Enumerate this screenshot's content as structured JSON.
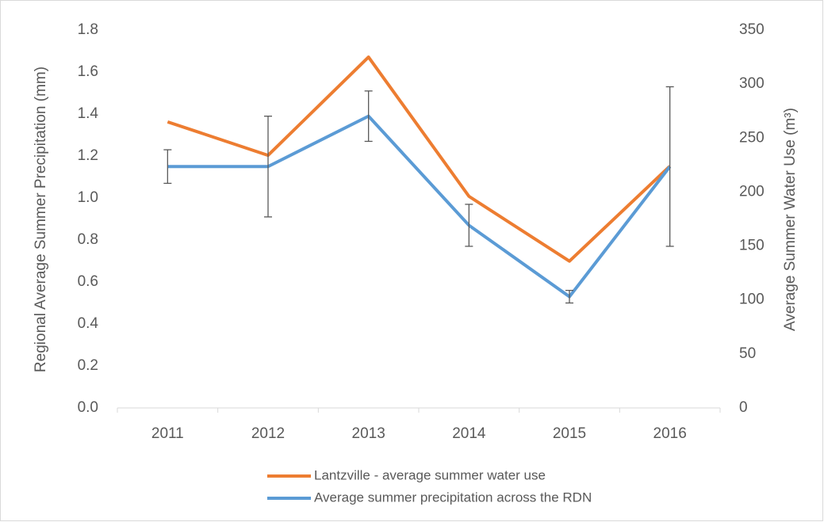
{
  "chart_data": {
    "type": "line",
    "categories": [
      "2011",
      "2012",
      "2013",
      "2014",
      "2015",
      "2016"
    ],
    "y_label": "Regional Average Summer Precipitation (mm)",
    "y2_label": "Average Summer Water Use (m³)",
    "ylim": [
      0,
      1.8
    ],
    "yticks": [
      {
        "value": 0,
        "label": "0.0"
      },
      0.2,
      0.4,
      0.6,
      0.8,
      {
        "value": 1,
        "label": "1.0"
      },
      1.2,
      1.4,
      1.6,
      1.8
    ],
    "y2lim": [
      0,
      350
    ],
    "y2ticks": [
      0,
      50,
      100,
      150,
      200,
      250,
      300,
      350
    ],
    "grid": false,
    "legend": "bottom",
    "series": [
      {
        "name": "Lantzville - average summer water use",
        "color": "#ed7d31",
        "axis": "y2",
        "values": [
          265,
          234,
          325,
          196,
          136,
          224
        ]
      },
      {
        "name": "Average summer precipitation across the RDN",
        "color": "#5b9bd5",
        "axis": "y",
        "values": [
          1.15,
          1.15,
          1.39,
          0.87,
          0.53,
          1.15
        ],
        "errors": [
          0.08,
          0.24,
          0.12,
          0.1,
          0.03,
          0.38
        ]
      }
    ]
  }
}
